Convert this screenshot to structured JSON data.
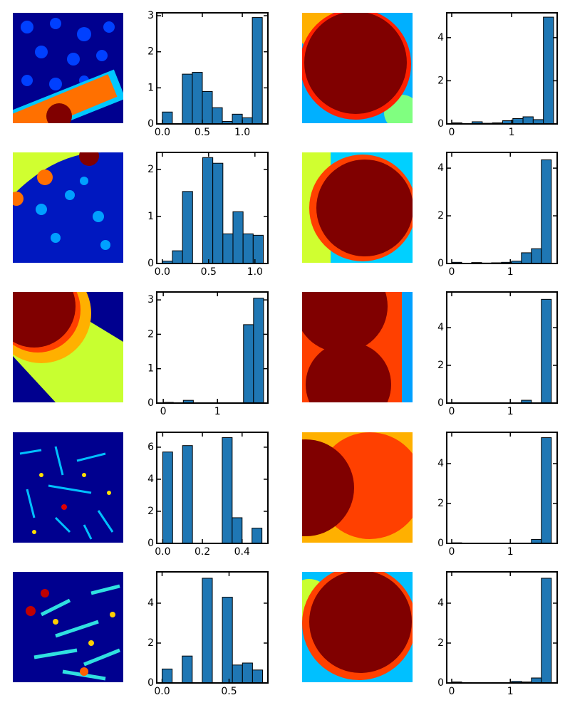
{
  "chart_data": [
    {
      "type": "histogram",
      "color": "#1f77b4",
      "bins": [
        0,
        0.125,
        0.25,
        0.375,
        0.5,
        0.625,
        0.75,
        0.875,
        1,
        1.125,
        1.25
      ],
      "values": [
        0.33,
        0,
        1.38,
        1.43,
        0.9,
        0.45,
        0.07,
        0.27,
        0.17,
        2.95
      ],
      "xlim": [
        -0.07,
        1.32
      ],
      "ylim": [
        0,
        3.08
      ],
      "xticks": [
        {
          "value": 0,
          "label": "0.0"
        },
        0.5,
        {
          "value": 1,
          "label": "1.0"
        }
      ],
      "yticks": [
        0,
        1,
        2,
        3
      ]
    },
    {
      "type": "histogram",
      "color": "#1f77b4",
      "bins": [
        0,
        0.17,
        0.34,
        0.51,
        0.68,
        0.85,
        1.02,
        1.19,
        1.36,
        1.53,
        1.7
      ],
      "values": [
        0.05,
        0,
        0.1,
        0.03,
        0.05,
        0.15,
        0.25,
        0.33,
        0.2,
        4.95
      ],
      "xlim": [
        -0.083,
        1.76
      ],
      "ylim": [
        0,
        5.15
      ],
      "xticks": [
        0,
        1
      ],
      "yticks": [
        0,
        2,
        4
      ]
    },
    {
      "type": "histogram",
      "color": "#1f77b4",
      "bins": [
        0,
        0.109,
        0.218,
        0.327,
        0.436,
        0.545,
        0.654,
        0.763,
        0.872,
        0.981,
        1.09
      ],
      "values": [
        0.05,
        0.27,
        1.53,
        0,
        2.25,
        2.13,
        0.63,
        1.1,
        0.63,
        0.6
      ],
      "xlim": [
        -0.06,
        1.14
      ],
      "ylim": [
        0,
        2.36
      ],
      "xticks": [
        {
          "value": 0,
          "label": "0.0"
        },
        0.5,
        {
          "value": 1,
          "label": "1.0"
        }
      ],
      "yticks": [
        0,
        1,
        2
      ]
    },
    {
      "type": "histogram",
      "color": "#1f77b4",
      "bins": [
        0,
        0.17,
        0.34,
        0.51,
        0.68,
        0.85,
        1.02,
        1.19,
        1.36,
        1.53,
        1.7
      ],
      "values": [
        0.05,
        0,
        0.04,
        0.02,
        0.03,
        0.05,
        0.1,
        0.45,
        0.62,
        4.35
      ],
      "xlim": [
        -0.085,
        1.8
      ],
      "ylim": [
        0,
        4.66
      ],
      "xticks": [
        0,
        1
      ],
      "yticks": [
        0,
        2,
        4
      ]
    },
    {
      "type": "histogram",
      "color": "#1f77b4",
      "bins": [
        0,
        0.185,
        0.37,
        0.555,
        0.74,
        0.925,
        1.11,
        1.295,
        1.48,
        1.665,
        1.85
      ],
      "values": [
        0.02,
        0,
        0.08,
        0,
        0,
        0,
        0,
        0,
        2.28,
        3.05
      ],
      "xlim": [
        -0.12,
        1.93
      ],
      "ylim": [
        0,
        3.23
      ],
      "xticks": [
        0,
        1
      ],
      "yticks": [
        0,
        1,
        2,
        3
      ]
    },
    {
      "type": "histogram",
      "color": "#1f77b4",
      "bins": [
        0,
        0.17,
        0.34,
        0.51,
        0.68,
        0.85,
        1.02,
        1.19,
        1.36,
        1.53,
        1.7
      ],
      "values": [
        0.02,
        0,
        0,
        0,
        0,
        0,
        0,
        0.15,
        0,
        5.5
      ],
      "xlim": [
        -0.085,
        1.8
      ],
      "ylim": [
        0,
        5.89
      ],
      "xticks": [
        0,
        1
      ],
      "yticks": [
        0,
        2,
        4
      ]
    },
    {
      "type": "histogram",
      "color": "#1f77b4",
      "bins": [
        0,
        0.05,
        0.1,
        0.15,
        0.2,
        0.25,
        0.3,
        0.35,
        0.4,
        0.45,
        0.5
      ],
      "values": [
        5.7,
        0,
        6.1,
        0,
        0,
        0,
        6.6,
        1.6,
        0,
        0.95
      ],
      "xlim": [
        -0.03,
        0.53
      ],
      "ylim": [
        0,
        6.93
      ],
      "xticks": [
        {
          "value": 0,
          "label": "0.0"
        },
        0.2,
        0.4
      ],
      "yticks": [
        0,
        2,
        4,
        6
      ]
    },
    {
      "type": "histogram",
      "color": "#1f77b4",
      "bins": [
        0,
        0.17,
        0.34,
        0.51,
        0.68,
        0.85,
        1.02,
        1.19,
        1.36,
        1.53,
        1.7
      ],
      "values": [
        0.03,
        0,
        0,
        0,
        0,
        0,
        0,
        0,
        0.2,
        5.3
      ],
      "xlim": [
        -0.085,
        1.8
      ],
      "ylim": [
        0,
        5.57
      ],
      "xticks": [
        0,
        1
      ],
      "yticks": [
        0,
        2,
        4
      ]
    },
    {
      "type": "histogram",
      "color": "#1f77b4",
      "bins": [
        0,
        0.075,
        0.15,
        0.225,
        0.3,
        0.375,
        0.45,
        0.525,
        0.6,
        0.675,
        0.75
      ],
      "values": [
        0.7,
        0,
        1.35,
        0,
        5.25,
        0,
        4.3,
        0.9,
        1.0,
        0.65
      ],
      "xlim": [
        -0.04,
        0.79
      ],
      "ylim": [
        0,
        5.57
      ],
      "xticks": [
        {
          "value": 0,
          "label": "0.0"
        },
        0.5
      ],
      "yticks": [
        0,
        2,
        4
      ]
    },
    {
      "type": "histogram",
      "color": "#1f77b4",
      "bins": [
        0,
        0.17,
        0.34,
        0.51,
        0.68,
        0.85,
        1.02,
        1.19,
        1.36,
        1.53,
        1.7
      ],
      "values": [
        0.05,
        0.02,
        0,
        0,
        0.02,
        0.02,
        0.08,
        0.05,
        0.25,
        5.25
      ],
      "xlim": [
        -0.085,
        1.8
      ],
      "ylim": [
        0,
        5.57
      ],
      "xticks": [
        0,
        1
      ],
      "yticks": [
        0,
        2,
        4
      ]
    }
  ]
}
